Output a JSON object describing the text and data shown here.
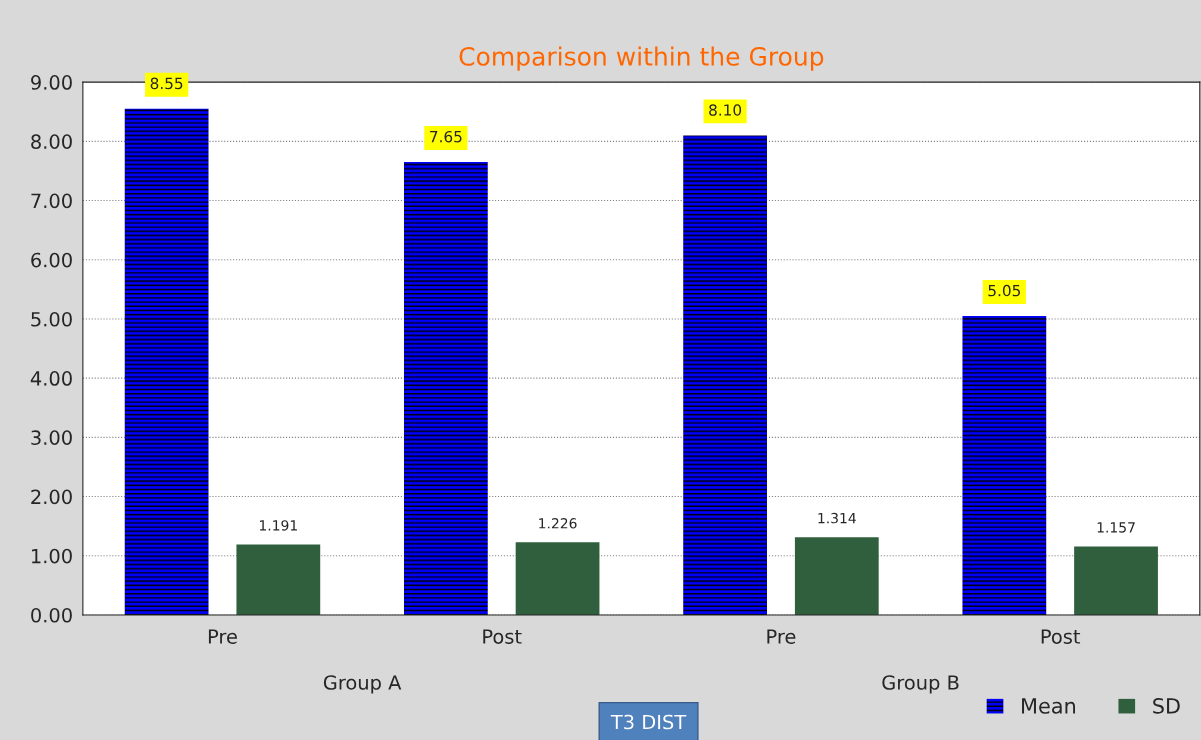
{
  "chart_data": {
    "type": "bar",
    "title": "Comparison within the Group",
    "categories": [
      "Pre",
      "Post",
      "Pre",
      "Post"
    ],
    "series": [
      {
        "name": "Mean",
        "color": "#0000ff",
        "values": [
          8.55,
          7.65,
          8.1,
          5.05
        ],
        "value_labels": [
          "8.55",
          "7.65",
          "8.10",
          "5.05"
        ]
      },
      {
        "name": "SD",
        "color": "#2f5f3c",
        "values": [
          1.191,
          1.226,
          1.314,
          1.157
        ],
        "value_labels": [
          "1.191",
          "1.226",
          "1.314",
          "1.157"
        ]
      }
    ],
    "ylim": [
      0,
      9
    ],
    "yticks": [
      {
        "value": 0,
        "label": "0.00"
      },
      {
        "value": 1,
        "label": "1.00"
      },
      {
        "value": 2,
        "label": "2.00"
      },
      {
        "value": 3,
        "label": "3.00"
      },
      {
        "value": 4,
        "label": "4.00"
      },
      {
        "value": 5,
        "label": "5.00"
      },
      {
        "value": 6,
        "label": "6.00"
      },
      {
        "value": 7,
        "label": "7.00"
      },
      {
        "value": 8,
        "label": "8.00"
      },
      {
        "value": 9,
        "label": "9.00"
      }
    ],
    "grid": "y",
    "legend": "bottom right",
    "annotations": [
      "Group A",
      "Group B",
      "T3 DIST"
    ]
  }
}
